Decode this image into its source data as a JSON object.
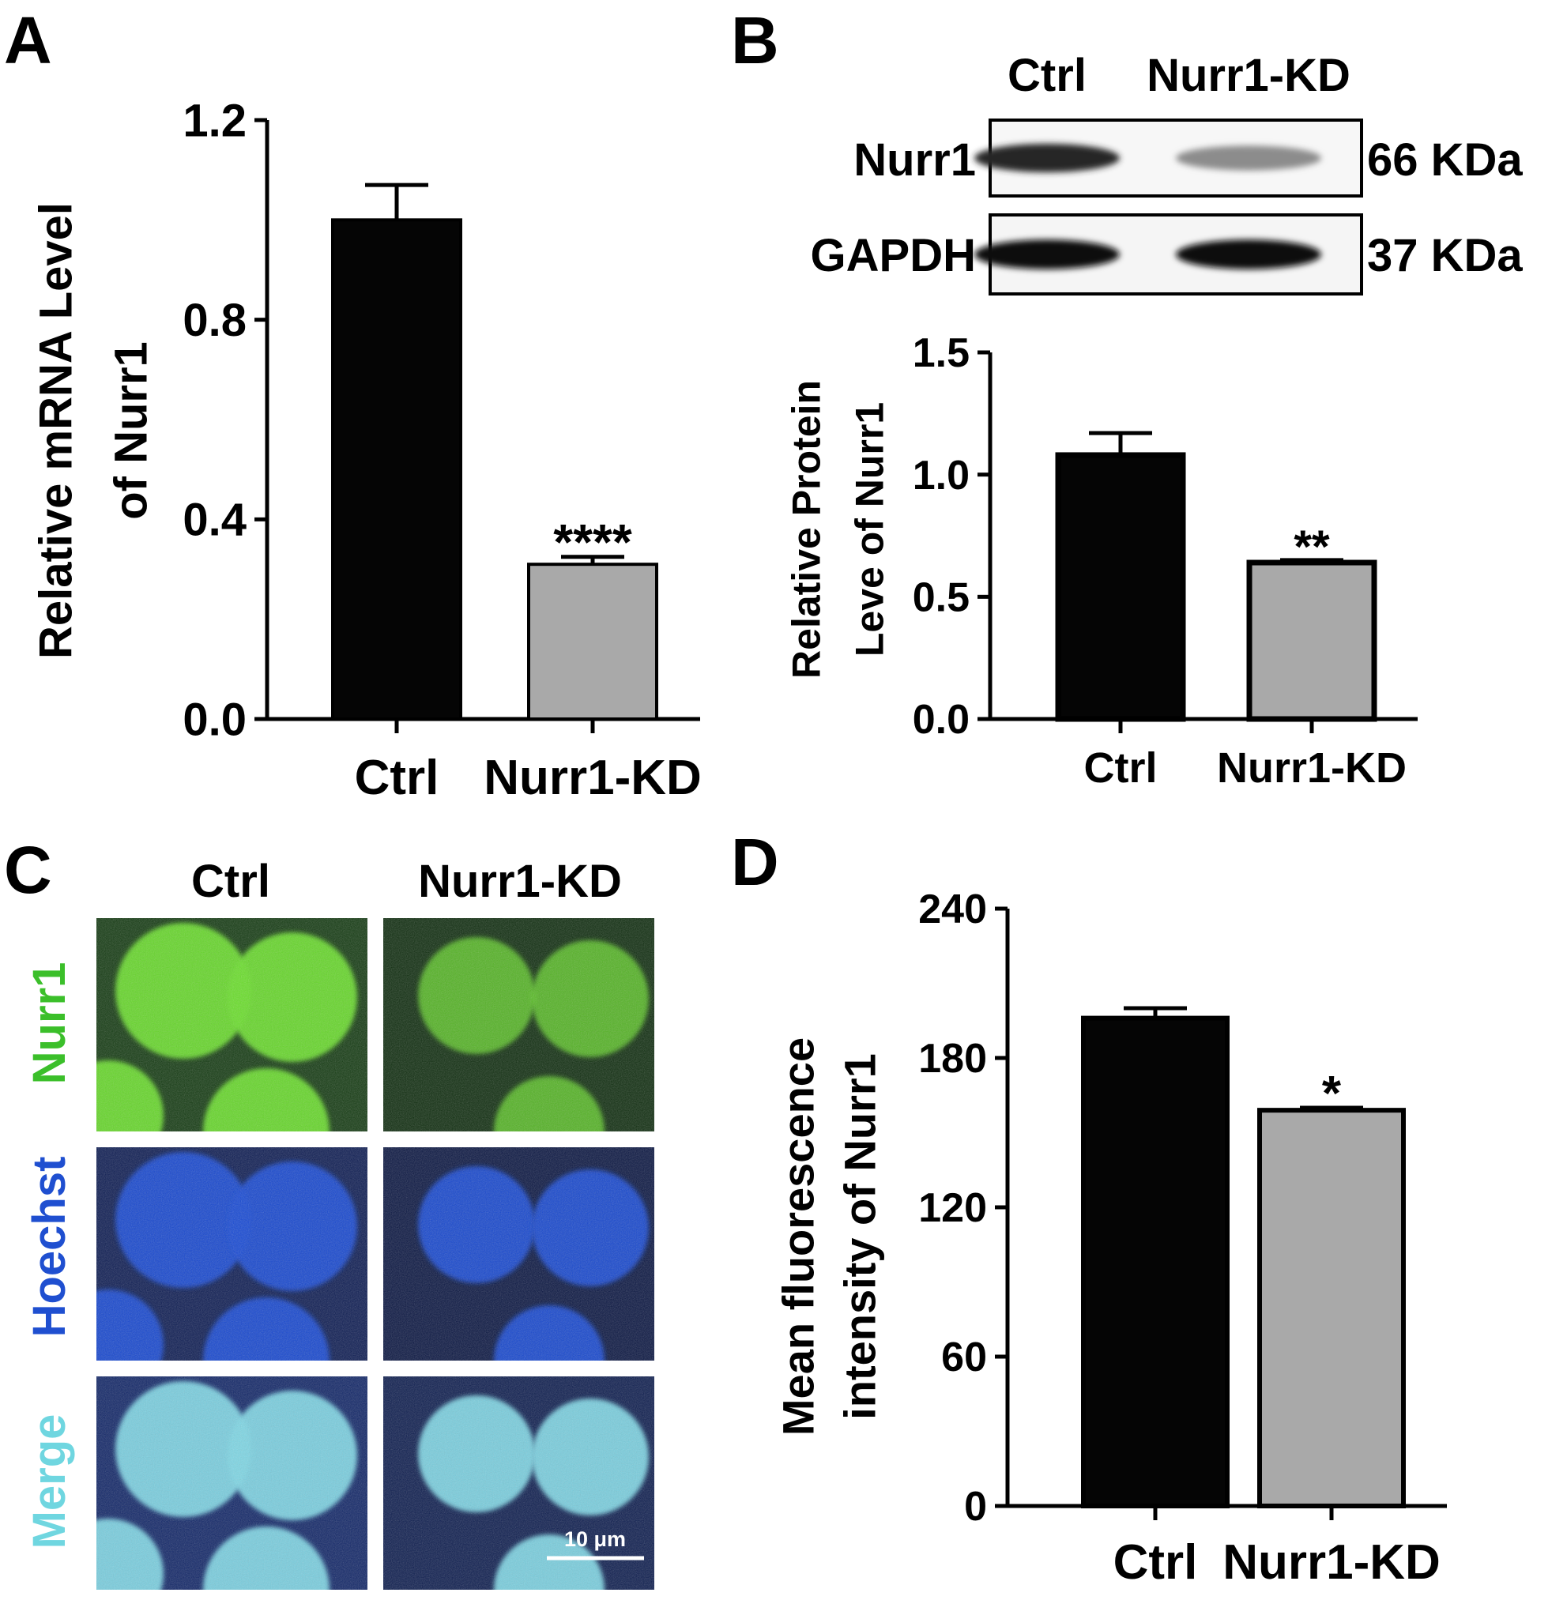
{
  "panels": {
    "A": {
      "letter": "A"
    },
    "B": {
      "letter": "B"
    },
    "C": {
      "letter": "C"
    },
    "D": {
      "letter": "D"
    }
  },
  "western_blot": {
    "lanes": [
      "Ctrl",
      "Nurr1-KD"
    ],
    "rows": [
      {
        "protein": "Nurr1",
        "size": "66 KDa",
        "band_intensity": [
          0.85,
          0.45
        ]
      },
      {
        "protein": "GAPDH",
        "size": "37 KDa",
        "band_intensity": [
          0.95,
          0.95
        ]
      }
    ]
  },
  "microscopy": {
    "columns": [
      "Ctrl",
      "Nurr1-KD"
    ],
    "rows": [
      {
        "label": "Nurr1",
        "color": "#3bbf2a"
      },
      {
        "label": "Hoechst",
        "color": "#1f4fd0"
      },
      {
        "label": "Merge",
        "color": "#6fd6e0"
      }
    ],
    "scale_bar": "10 μm"
  },
  "colors": {
    "ctrl": "#050505",
    "kd": "#a9a9a9"
  },
  "chart_data": [
    {
      "panel": "A",
      "type": "bar",
      "categories": [
        "Ctrl",
        "Nurr1-KD"
      ],
      "values": [
        1.0,
        0.31
      ],
      "errors": [
        0.07,
        0.015
      ],
      "significance": [
        "",
        "****"
      ],
      "ylabel": [
        "Relative mRNA Level",
        "of Nurr1"
      ],
      "ylim": [
        0,
        1.2
      ],
      "yticks": [
        0.0,
        0.4,
        0.8,
        1.2
      ],
      "yticklabels": [
        "0.0",
        "0.4",
        "0.8",
        "1.2"
      ]
    },
    {
      "panel": "B",
      "type": "bar",
      "categories": [
        "Ctrl",
        "Nurr1-KD"
      ],
      "values": [
        1.08,
        0.64
      ],
      "errors": [
        0.09,
        0.01
      ],
      "significance": [
        "",
        "**"
      ],
      "ylabel": [
        "Relative Protein",
        "Leve of Nurr1"
      ],
      "ylim": [
        0,
        1.5
      ],
      "yticks": [
        0.0,
        0.5,
        1.0,
        1.5
      ],
      "yticklabels": [
        "0.0",
        "0.5",
        "1.0",
        "1.5"
      ]
    },
    {
      "panel": "D",
      "type": "bar",
      "categories": [
        "Ctrl",
        "Nurr1-KD"
      ],
      "values": [
        196,
        159
      ],
      "errors": [
        4,
        1
      ],
      "significance": [
        "",
        "*"
      ],
      "ylabel": [
        "Mean fluorescence",
        "intensity of Nurr1"
      ],
      "ylim": [
        0,
        240
      ],
      "yticks": [
        0,
        60,
        120,
        180,
        240
      ],
      "yticklabels": [
        "0",
        "60",
        "120",
        "180",
        "240"
      ]
    }
  ]
}
